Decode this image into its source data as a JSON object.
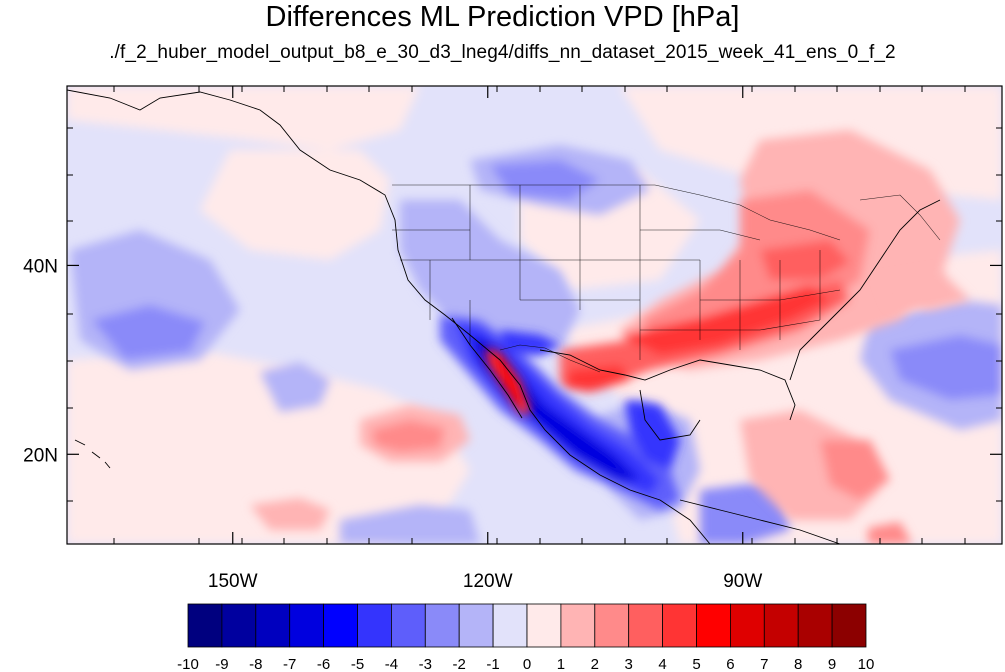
{
  "title": "Differences ML Prediction VPD [hPa]",
  "subtitle": "./f_2_huber_model_output_b8_e_30_d3_lneg4/diffs_nn_dataset_2015_week_41_ens_0_f_2",
  "map": {
    "projection": "equirectangular",
    "lon_range": [
      -169.5,
      -59.5
    ],
    "lat_range": [
      10.5,
      59.0
    ],
    "lon_ticks": [
      {
        "value": -150,
        "label": "150W"
      },
      {
        "value": -120,
        "label": "120W"
      },
      {
        "value": -90,
        "label": "90W"
      }
    ],
    "lat_ticks": [
      {
        "value": 40,
        "label": "40N"
      },
      {
        "value": 20,
        "label": "20N"
      }
    ],
    "variable": "VPD difference",
    "units": "hPa"
  },
  "colorbar": {
    "labels": [
      "-10",
      "-9",
      "-8",
      "-7",
      "-6",
      "-5",
      "-4",
      "-3",
      "-2",
      "-1",
      "0",
      "1",
      "2",
      "3",
      "4",
      "5",
      "6",
      "7",
      "8",
      "9",
      "10"
    ],
    "colors": [
      "#00007f",
      "#00009f",
      "#0000bf",
      "#0000df",
      "#0000ff",
      "#3434fd",
      "#5e5efb",
      "#8a8af9",
      "#b4b4f8",
      "#e2e2fa",
      "#ffeaea",
      "#ffb4b4",
      "#ff8a8a",
      "#ff5f5f",
      "#ff3434",
      "#ff0000",
      "#df0000",
      "#c40000",
      "#a90000",
      "#8c0000"
    ]
  }
}
